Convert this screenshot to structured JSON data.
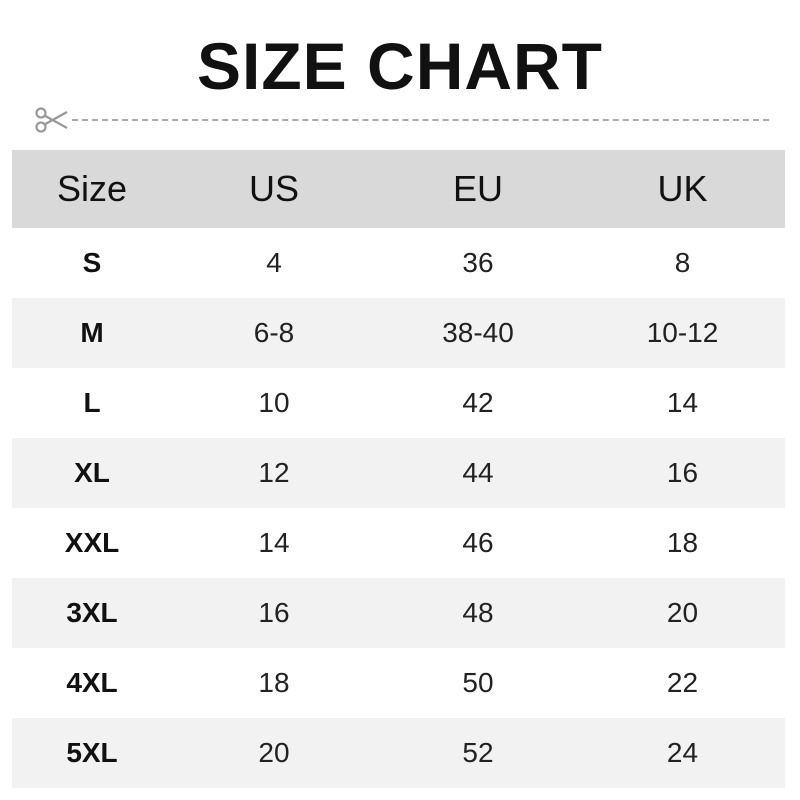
{
  "title": "SIZE CHART",
  "icons": {
    "cut": "scissors-icon"
  },
  "colors": {
    "header_bg": "#d9d9d9",
    "alt_row_bg": "#f2f2f2",
    "dashes": "#aaaaaa"
  },
  "table": {
    "headers": [
      "Size",
      "US",
      "EU",
      "UK"
    ],
    "rows": [
      [
        "S",
        "4",
        "36",
        "8"
      ],
      [
        "M",
        "6-8",
        "38-40",
        "10-12"
      ],
      [
        "L",
        "10",
        "42",
        "14"
      ],
      [
        "XL",
        "12",
        "44",
        "16"
      ],
      [
        "XXL",
        "14",
        "46",
        "18"
      ],
      [
        "3XL",
        "16",
        "48",
        "20"
      ],
      [
        "4XL",
        "18",
        "50",
        "22"
      ],
      [
        "5XL",
        "20",
        "52",
        "24"
      ]
    ]
  }
}
